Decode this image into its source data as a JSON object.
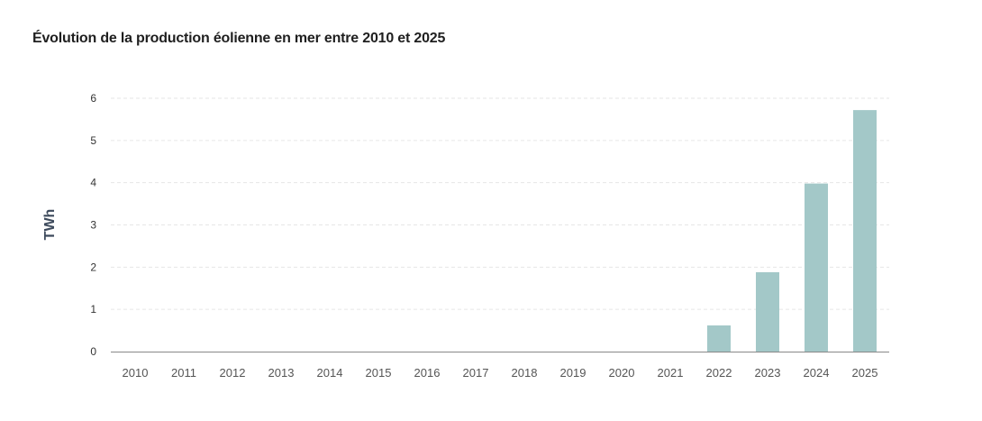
{
  "chart_data": {
    "type": "bar",
    "title": "Évolution de la production éolienne en mer entre 2010 et 2025",
    "xlabel": "",
    "ylabel": "TWh",
    "categories": [
      "2010",
      "2011",
      "2012",
      "2013",
      "2014",
      "2015",
      "2016",
      "2017",
      "2018",
      "2019",
      "2020",
      "2021",
      "2022",
      "2023",
      "2024",
      "2025"
    ],
    "values": [
      0,
      0,
      0,
      0,
      0,
      0,
      0,
      0,
      0,
      0,
      0,
      0,
      0.62,
      1.88,
      3.98,
      5.72
    ],
    "ylim": [
      0,
      6
    ],
    "yticks": [
      "0",
      "1",
      "2",
      "3",
      "4",
      "5",
      "6"
    ],
    "grid": true,
    "legend": "none",
    "colors": {
      "bar": "#a3c8c8",
      "grid": "#e6e6e6",
      "axis": "#888888"
    }
  }
}
